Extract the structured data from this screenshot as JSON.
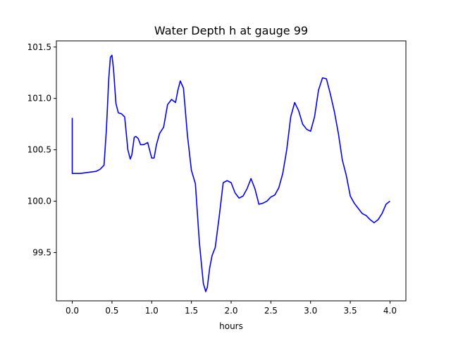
{
  "chart_data": {
    "type": "line",
    "title": "Water Depth h at gauge 99",
    "xlabel": "hours",
    "ylabel": "",
    "xlim": [
      -0.2,
      4.2
    ],
    "ylim": [
      99.03,
      101.56
    ],
    "xticks": [
      0.0,
      0.5,
      1.0,
      1.5,
      2.0,
      2.5,
      3.0,
      3.5,
      4.0
    ],
    "xtick_labels": [
      "0.0",
      "0.5",
      "1.0",
      "1.5",
      "2.0",
      "2.5",
      "3.0",
      "3.5",
      "4.0"
    ],
    "yticks": [
      99.5,
      100.0,
      100.5,
      101.0,
      101.5
    ],
    "ytick_labels": [
      "99.5",
      "100.0",
      "100.5",
      "101.0",
      "101.5"
    ],
    "grid": false,
    "legend": "none",
    "series": [
      {
        "color": "#0000ff",
        "x": [
          0.0,
          0.0,
          0.1,
          0.2,
          0.3,
          0.35,
          0.4,
          0.43,
          0.46,
          0.48,
          0.5,
          0.52,
          0.55,
          0.58,
          0.62,
          0.66,
          0.7,
          0.73,
          0.75,
          0.78,
          0.8,
          0.83,
          0.86,
          0.9,
          0.95,
          0.98,
          1.0,
          1.03,
          1.06,
          1.1,
          1.15,
          1.2,
          1.25,
          1.3,
          1.33,
          1.36,
          1.4,
          1.45,
          1.5,
          1.55,
          1.6,
          1.65,
          1.68,
          1.7,
          1.73,
          1.76,
          1.8,
          1.85,
          1.9,
          1.95,
          2.0,
          2.05,
          2.1,
          2.15,
          2.2,
          2.25,
          2.3,
          2.35,
          2.4,
          2.45,
          2.5,
          2.55,
          2.6,
          2.65,
          2.7,
          2.75,
          2.8,
          2.85,
          2.9,
          2.95,
          3.0,
          3.05,
          3.1,
          3.15,
          3.2,
          3.25,
          3.3,
          3.35,
          3.4,
          3.45,
          3.5,
          3.55,
          3.6,
          3.65,
          3.7,
          3.75,
          3.8,
          3.85,
          3.9,
          3.95,
          4.0
        ],
        "y": [
          100.81,
          100.27,
          100.27,
          100.28,
          100.29,
          100.31,
          100.35,
          100.7,
          101.2,
          101.4,
          101.42,
          101.28,
          100.95,
          100.86,
          100.85,
          100.82,
          100.5,
          100.41,
          100.45,
          100.62,
          100.63,
          100.61,
          100.55,
          100.55,
          100.57,
          100.48,
          100.42,
          100.42,
          100.55,
          100.66,
          100.72,
          100.94,
          100.99,
          100.96,
          101.08,
          101.17,
          101.1,
          100.64,
          100.3,
          100.17,
          99.6,
          99.2,
          99.12,
          99.16,
          99.35,
          99.47,
          99.55,
          99.85,
          100.18,
          100.2,
          100.18,
          100.08,
          100.03,
          100.05,
          100.12,
          100.22,
          100.12,
          99.97,
          99.98,
          100.0,
          100.04,
          100.06,
          100.13,
          100.27,
          100.5,
          100.82,
          100.96,
          100.88,
          100.75,
          100.7,
          100.68,
          100.82,
          101.08,
          101.2,
          101.19,
          101.04,
          100.87,
          100.66,
          100.4,
          100.25,
          100.05,
          99.98,
          99.93,
          99.88,
          99.86,
          99.82,
          99.79,
          99.82,
          99.88,
          99.97,
          100.0
        ]
      }
    ]
  }
}
